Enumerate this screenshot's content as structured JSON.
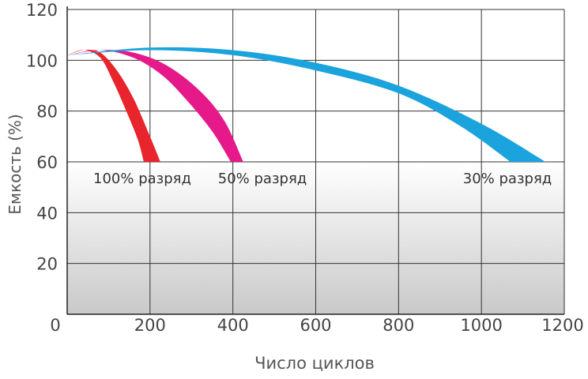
{
  "chart_data": {
    "type": "area",
    "title": "",
    "xlabel": "Число циклов",
    "ylabel": "Емкость (%)",
    "xlim": [
      0,
      1200
    ],
    "ylim": [
      0,
      120
    ],
    "x_ticks": [
      200,
      400,
      600,
      800,
      1000,
      1200
    ],
    "x_tick_labels": [
      "200",
      "400",
      "600",
      "800",
      "1000",
      "1200"
    ],
    "y_ticks": [
      20,
      40,
      60,
      80,
      100,
      120
    ],
    "y_tick_labels": [
      "20",
      "40",
      "60",
      "80",
      "100",
      "120"
    ],
    "origin_label": "0",
    "grid": true,
    "shaded_region_below": 60,
    "series": [
      {
        "name": "100% разряд",
        "color": "#e8242c",
        "upper": {
          "x": [
            0,
            40,
            80,
            120,
            160,
            200,
            225
          ],
          "y": [
            102,
            104,
            103,
            96,
            85,
            70,
            60
          ]
        },
        "lower": {
          "x": [
            0,
            40,
            80,
            110,
            140,
            170,
            185
          ],
          "y": [
            102,
            104,
            101,
            92,
            81,
            69,
            60
          ]
        }
      },
      {
        "name": "50% разряд",
        "color": "#e6198a",
        "upper": {
          "x": [
            0,
            80,
            160,
            240,
            320,
            380,
            425
          ],
          "y": [
            102,
            104,
            103,
            98,
            88,
            76,
            60
          ]
        },
        "lower": {
          "x": [
            0,
            80,
            160,
            230,
            290,
            350,
            395
          ],
          "y": [
            102,
            104,
            101,
            94,
            84,
            72,
            60
          ]
        }
      },
      {
        "name": "30% разряд",
        "color": "#1aa3dc",
        "upper": {
          "x": [
            0,
            200,
            400,
            600,
            800,
            1000,
            1155
          ],
          "y": [
            102,
            105,
            104,
            99,
            90,
            75,
            60
          ]
        },
        "lower": {
          "x": [
            0,
            200,
            400,
            600,
            800,
            950,
            1070
          ],
          "y": [
            102,
            104,
            102,
            96,
            87,
            74,
            60
          ]
        }
      }
    ]
  }
}
